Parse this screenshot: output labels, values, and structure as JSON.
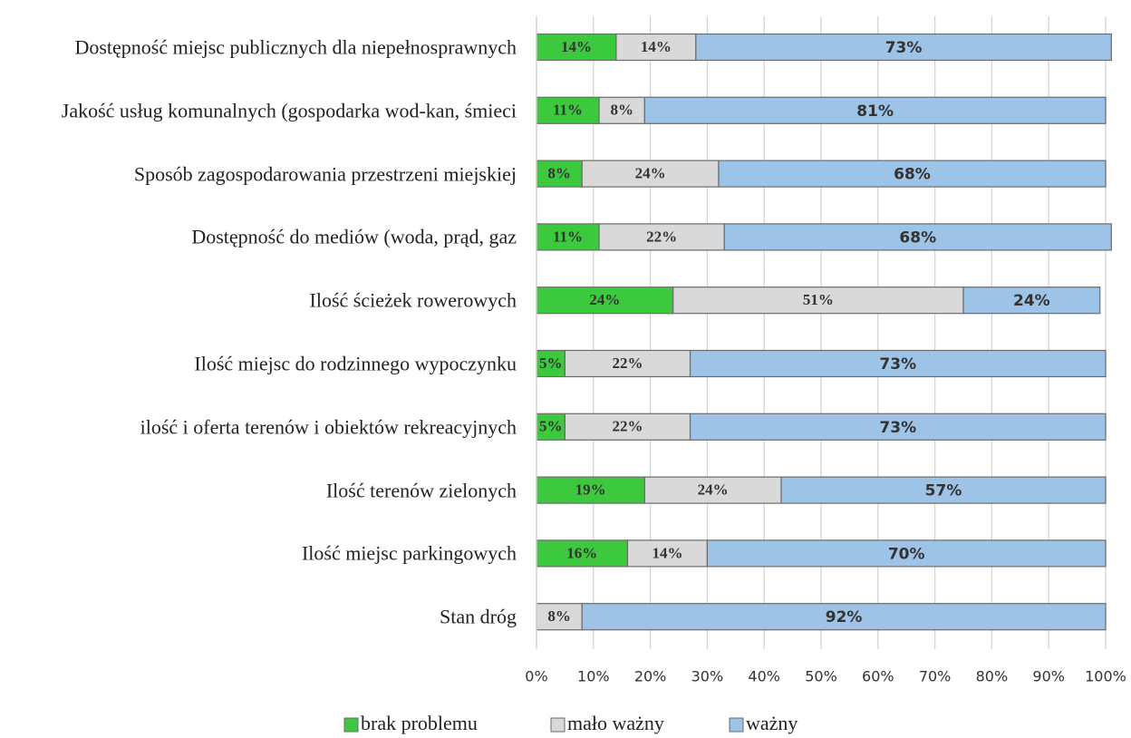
{
  "chart_data": {
    "type": "stacked_bar_horizontal",
    "categories": [
      "Dostępność miejsc publicznych dla niepełnosprawnych",
      "Jakość usług komunalnych (gospodarka wod-kan, śmieci",
      "Sposób zagospodarowania przestrzeni miejskiej",
      "Dostępność do mediów (woda, prąd, gaz",
      "Ilość ścieżek rowerowych",
      "Ilość miejsc do rodzinnego wypoczynku",
      "ilość i oferta terenów i obiektów rekreacyjnych",
      "Ilość terenów zielonych",
      "Ilość miejsc parkingowych",
      "Stan dróg"
    ],
    "series": [
      {
        "name": "brak problemu",
        "color": "#3dc93d",
        "values": [
          14,
          11,
          8,
          11,
          24,
          5,
          5,
          19,
          16,
          0
        ],
        "value_labels": [
          "14%",
          "11%",
          "8%",
          "11%",
          "24%",
          "5%",
          "5%",
          "19%",
          "16%",
          null
        ]
      },
      {
        "name": "mało ważny",
        "color": "#d9d9d9",
        "values": [
          14,
          8,
          24,
          22,
          51,
          22,
          22,
          24,
          14,
          8
        ],
        "value_labels": [
          "14%",
          "8%",
          "24%",
          "22%",
          "51%",
          "22%",
          "22%",
          "24%",
          "14%",
          "8%"
        ]
      },
      {
        "name": "ważny",
        "color": "#9dc3e6",
        "values": [
          73,
          81,
          68,
          68,
          24,
          73,
          73,
          57,
          70,
          92
        ],
        "value_labels": [
          "73%",
          "81%",
          "68%",
          "68%",
          "24%",
          "73%",
          "73%",
          "57%",
          "70%",
          "92%"
        ]
      }
    ],
    "xlim": [
      0,
      100
    ],
    "xticks": [
      {
        "value": 0,
        "label": "0%"
      },
      {
        "value": 10,
        "label": "10%"
      },
      {
        "value": 20,
        "label": "20%"
      },
      {
        "value": 30,
        "label": "30%"
      },
      {
        "value": 40,
        "label": "40%"
      },
      {
        "value": 50,
        "label": "50%"
      },
      {
        "value": 60,
        "label": "60%"
      },
      {
        "value": 70,
        "label": "70%"
      },
      {
        "value": 80,
        "label": "80%"
      },
      {
        "value": 90,
        "label": "90%"
      },
      {
        "value": 100,
        "label": "100%"
      }
    ],
    "grid": true,
    "legend": "bottom"
  }
}
